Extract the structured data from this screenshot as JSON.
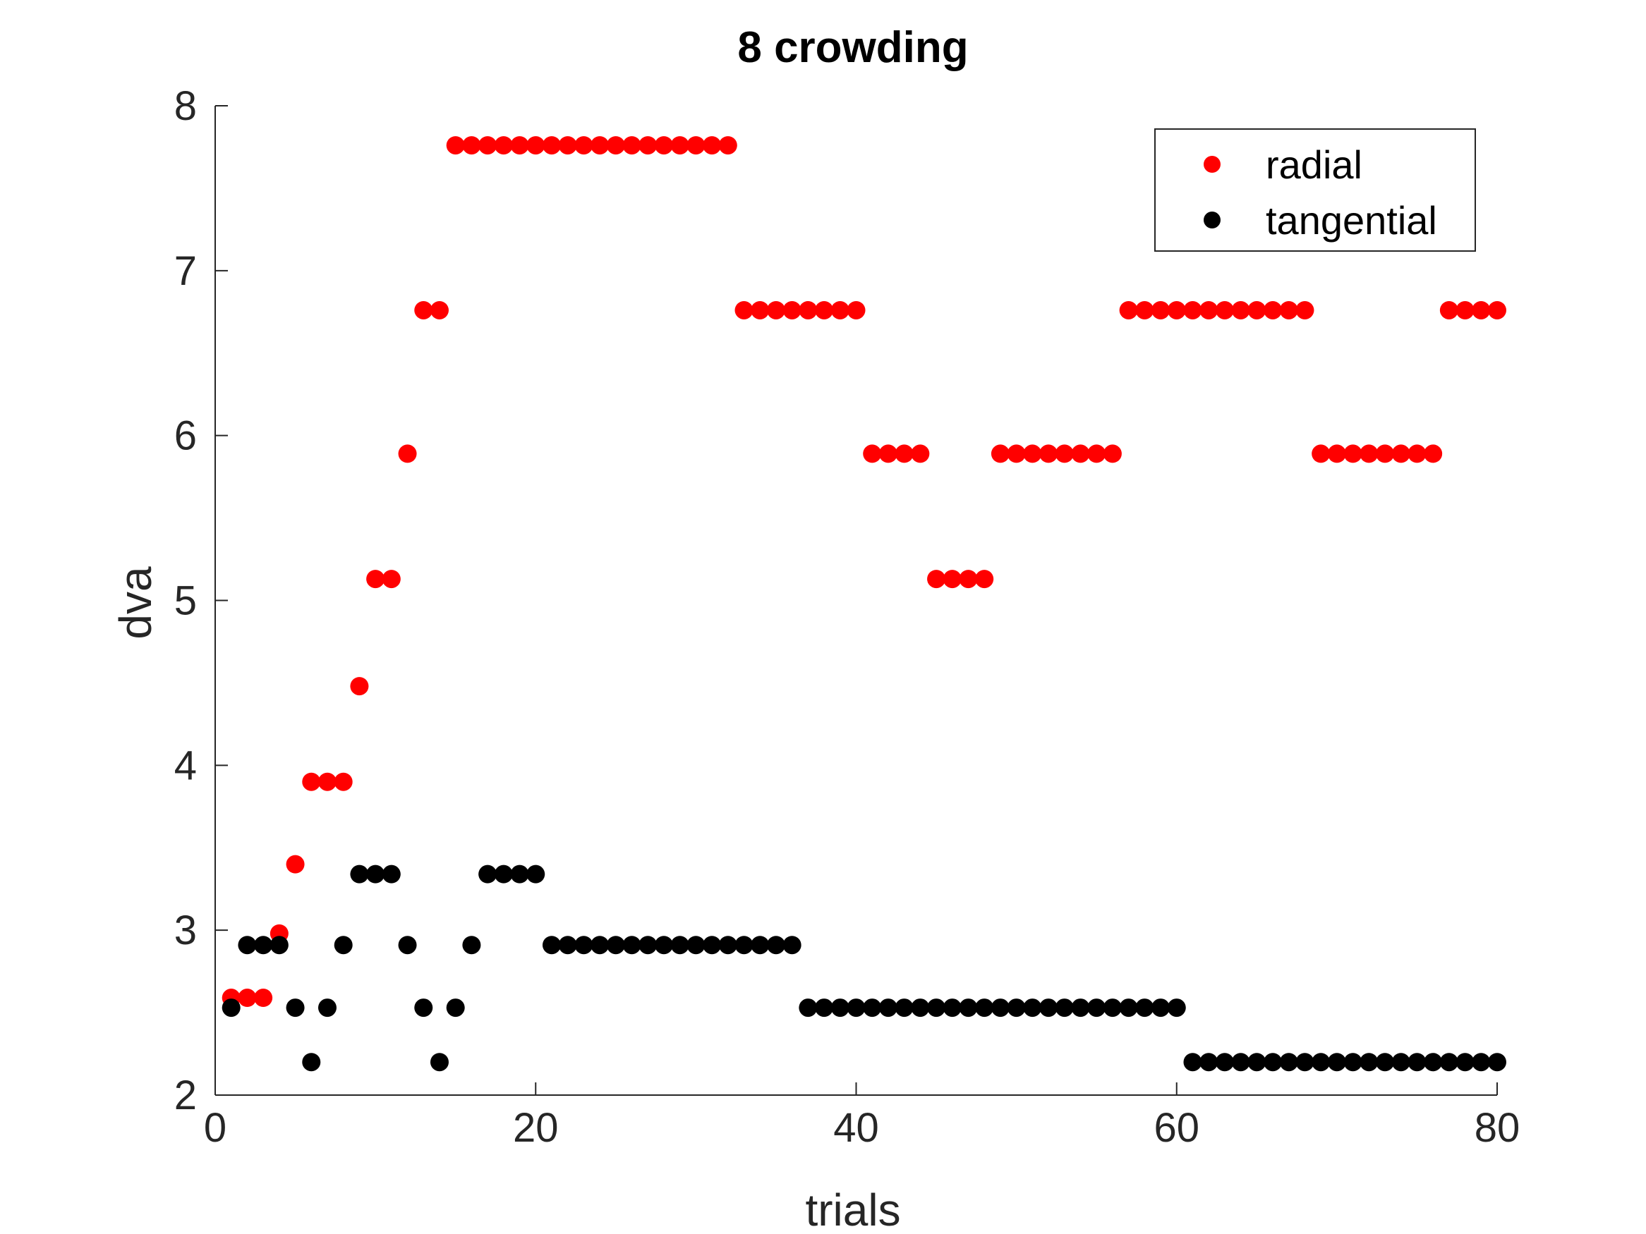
{
  "chart_data": {
    "type": "scatter",
    "title": "8 crowding",
    "xlabel": "trials",
    "ylabel": "dva",
    "xlim": [
      0,
      80
    ],
    "ylim": [
      2,
      8
    ],
    "xticks": [
      0,
      20,
      40,
      60,
      80
    ],
    "yticks": [
      2,
      3,
      4,
      5,
      6,
      7,
      8
    ],
    "grid": false,
    "legend": {
      "position": "top-right",
      "boxed": true
    },
    "series": [
      {
        "name": "radial",
        "color": "#ff0000",
        "x": [
          1,
          2,
          3,
          4,
          5,
          6,
          7,
          8,
          9,
          10,
          11,
          12,
          13,
          14,
          15,
          16,
          17,
          18,
          19,
          20,
          21,
          22,
          23,
          24,
          25,
          26,
          27,
          28,
          29,
          30,
          31,
          32,
          33,
          34,
          35,
          36,
          37,
          38,
          39,
          40,
          41,
          42,
          43,
          44,
          45,
          46,
          47,
          48,
          49,
          50,
          51,
          52,
          53,
          54,
          55,
          56,
          57,
          58,
          59,
          60,
          61,
          62,
          63,
          64,
          65,
          66,
          67,
          68,
          69,
          70,
          71,
          72,
          73,
          74,
          75,
          76,
          77,
          78,
          79,
          80
        ],
        "y": [
          2.59,
          2.59,
          2.59,
          2.98,
          3.4,
          3.9,
          3.9,
          3.9,
          4.48,
          5.13,
          5.13,
          5.89,
          6.76,
          6.76,
          7.76,
          7.76,
          7.76,
          7.76,
          7.76,
          7.76,
          7.76,
          7.76,
          7.76,
          7.76,
          7.76,
          7.76,
          7.76,
          7.76,
          7.76,
          7.76,
          7.76,
          7.76,
          6.76,
          6.76,
          6.76,
          6.76,
          6.76,
          6.76,
          6.76,
          6.76,
          5.89,
          5.89,
          5.89,
          5.89,
          5.13,
          5.13,
          5.13,
          5.13,
          5.89,
          5.89,
          5.89,
          5.89,
          5.89,
          5.89,
          5.89,
          5.89,
          6.76,
          6.76,
          6.76,
          6.76,
          6.76,
          6.76,
          6.76,
          6.76,
          6.76,
          6.76,
          6.76,
          6.76,
          5.89,
          5.89,
          5.89,
          5.89,
          5.89,
          5.89,
          5.89,
          5.89,
          6.76,
          6.76,
          6.76,
          6.76
        ]
      },
      {
        "name": "tangential",
        "color": "#000000",
        "x": [
          1,
          2,
          3,
          4,
          5,
          6,
          7,
          8,
          9,
          10,
          11,
          12,
          13,
          14,
          15,
          16,
          17,
          18,
          19,
          20,
          21,
          22,
          23,
          24,
          25,
          26,
          27,
          28,
          29,
          30,
          31,
          32,
          33,
          34,
          35,
          36,
          37,
          38,
          39,
          40,
          41,
          42,
          43,
          44,
          45,
          46,
          47,
          48,
          49,
          50,
          51,
          52,
          53,
          54,
          55,
          56,
          57,
          58,
          59,
          60,
          61,
          62,
          63,
          64,
          65,
          66,
          67,
          68,
          69,
          70,
          71,
          72,
          73,
          74,
          75,
          76,
          77,
          78,
          79,
          80
        ],
        "y": [
          2.53,
          2.91,
          2.91,
          2.91,
          2.53,
          2.2,
          2.53,
          2.91,
          3.34,
          3.34,
          3.34,
          2.91,
          2.53,
          2.2,
          2.53,
          2.91,
          3.34,
          3.34,
          3.34,
          3.34,
          2.91,
          2.91,
          2.91,
          2.91,
          2.91,
          2.91,
          2.91,
          2.91,
          2.91,
          2.91,
          2.91,
          2.91,
          2.91,
          2.91,
          2.91,
          2.91,
          2.53,
          2.53,
          2.53,
          2.53,
          2.53,
          2.53,
          2.53,
          2.53,
          2.53,
          2.53,
          2.53,
          2.53,
          2.53,
          2.53,
          2.53,
          2.53,
          2.53,
          2.53,
          2.53,
          2.53,
          2.53,
          2.53,
          2.53,
          2.53,
          2.2,
          2.2,
          2.2,
          2.2,
          2.2,
          2.2,
          2.2,
          2.2,
          2.2,
          2.2,
          2.2,
          2.2,
          2.2,
          2.2,
          2.2,
          2.2,
          2.2,
          2.2,
          2.2,
          2.2
        ]
      }
    ]
  }
}
